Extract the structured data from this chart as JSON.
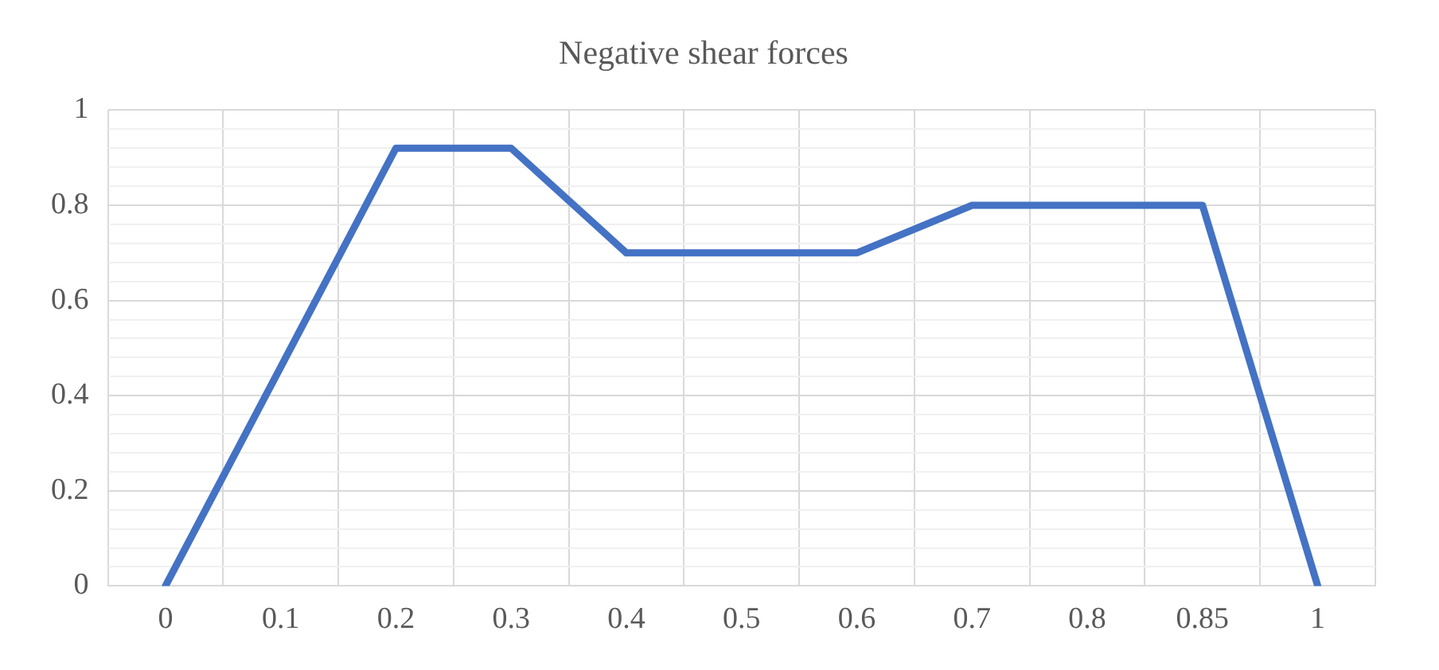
{
  "chart_data": {
    "type": "line",
    "title": "Negative shear forces",
    "categories": [
      "0",
      "0.1",
      "0.2",
      "0.3",
      "0.4",
      "0.5",
      "0.6",
      "0.7",
      "0.8",
      "0.85",
      "1"
    ],
    "series": [
      {
        "color": "#4472c4",
        "values": [
          0,
          0.46,
          0.92,
          0.92,
          0.7,
          0.7,
          0.7,
          0.8,
          0.8,
          0.8,
          0
        ]
      }
    ],
    "ylim": [
      0,
      1
    ],
    "yticks": [
      0,
      {
        "value": 0.04,
        "label": null
      },
      {
        "value": 0.08,
        "label": null
      },
      {
        "value": 0.12,
        "label": null
      },
      {
        "value": 0.16,
        "label": null
      },
      0.2,
      {
        "value": 0.24,
        "label": null
      },
      {
        "value": 0.28,
        "label": null
      },
      {
        "value": 0.32,
        "label": null
      },
      {
        "value": 0.36,
        "label": null
      },
      0.4,
      {
        "value": 0.44,
        "label": null
      },
      {
        "value": 0.48,
        "label": null
      },
      {
        "value": 0.52,
        "label": null
      },
      {
        "value": 0.56,
        "label": null
      },
      0.6,
      {
        "value": 0.64,
        "label": null
      },
      {
        "value": 0.68,
        "label": null
      },
      {
        "value": 0.72,
        "label": null
      },
      {
        "value": 0.76,
        "label": null
      },
      0.8,
      {
        "value": 0.84,
        "label": null
      },
      {
        "value": 0.88,
        "label": null
      },
      {
        "value": 0.92,
        "label": null
      },
      {
        "value": 0.96,
        "label": null
      },
      1
    ],
    "grid": true,
    "legend": false,
    "marker": "none",
    "line_style": "solid"
  }
}
